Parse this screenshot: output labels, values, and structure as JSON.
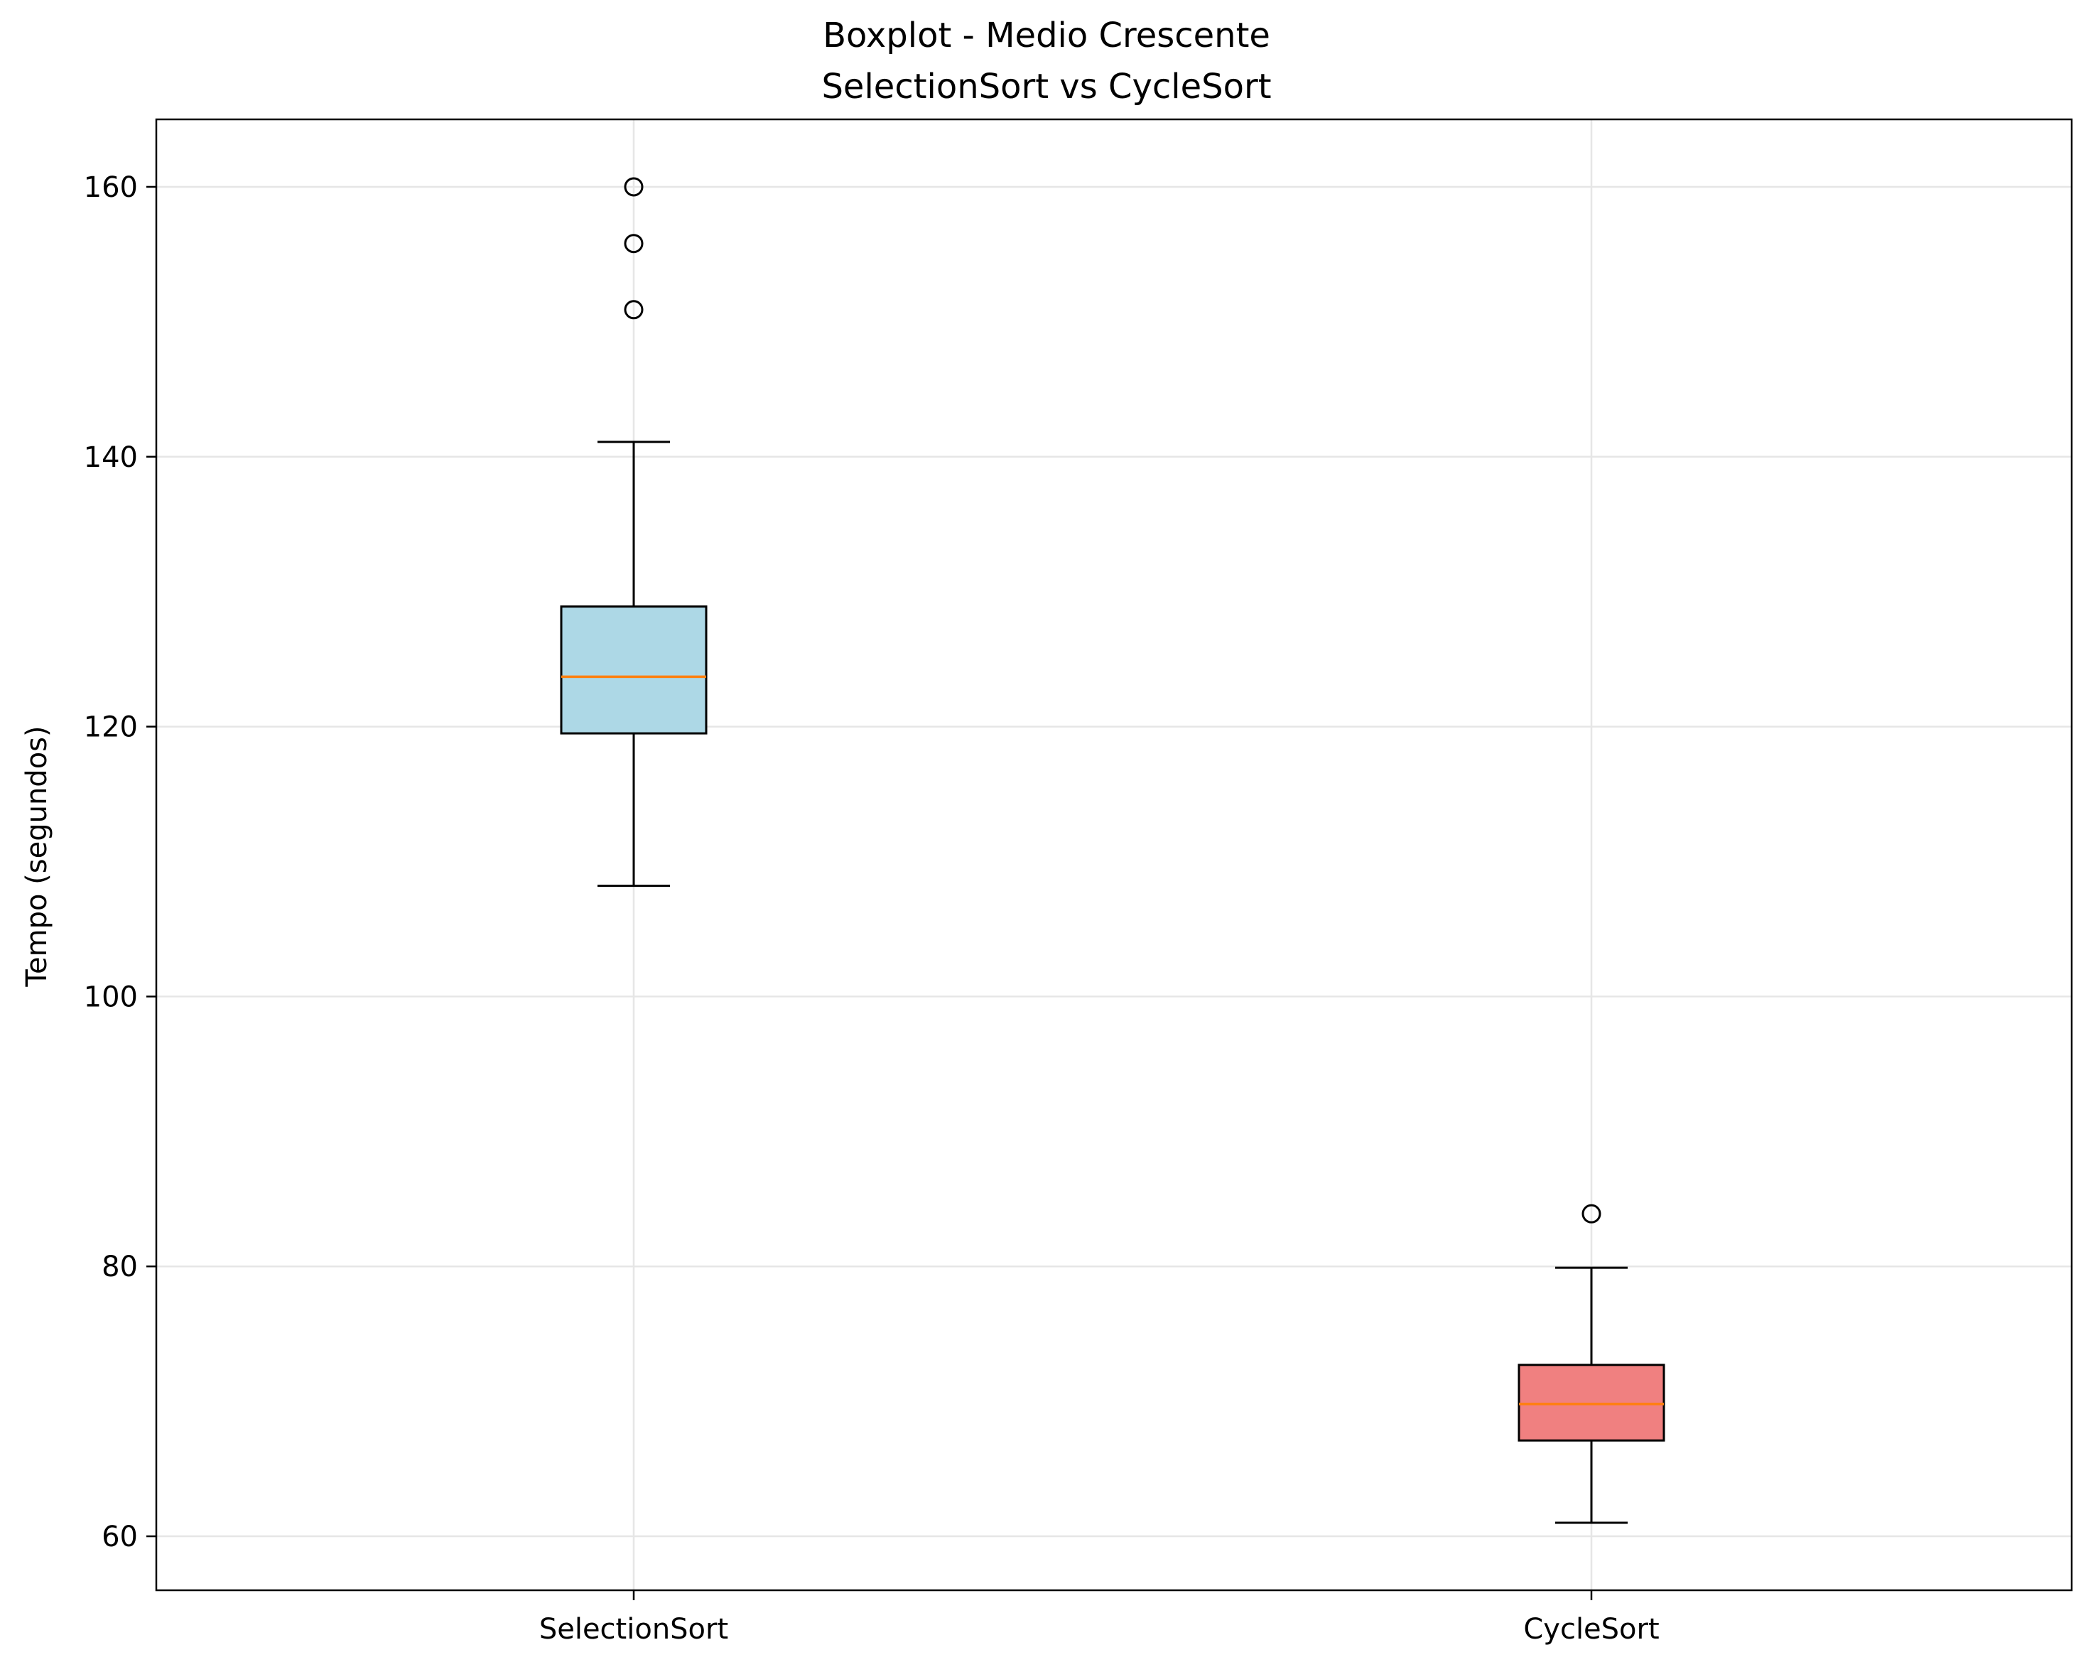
{
  "chart_data": {
    "type": "boxplot",
    "title": "Boxplot - Medio Crescente",
    "subtitle": "SelectionSort vs CycleSort",
    "ylabel": "Tempo (segundos)",
    "xlabel": "",
    "ylim": [
      56,
      165
    ],
    "yticks": [
      60,
      80,
      100,
      120,
      140,
      160
    ],
    "grid": true,
    "categories": [
      "SelectionSort",
      "CycleSort"
    ],
    "boxes": [
      {
        "category": "SelectionSort",
        "whisker_low": 108.2,
        "q1": 119.5,
        "median": 123.7,
        "q3": 128.9,
        "whisker_high": 141.1,
        "outliers": [
          150.9,
          155.8,
          160.0
        ],
        "color": "#add8e6"
      },
      {
        "category": "CycleSort",
        "whisker_low": 61.0,
        "q1": 67.1,
        "median": 69.8,
        "q3": 72.7,
        "whisker_high": 79.9,
        "outliers": [
          83.9
        ],
        "color": "#f08080"
      }
    ],
    "median_color": "#ff7f0e",
    "grid_color": "#e6e6e6"
  }
}
